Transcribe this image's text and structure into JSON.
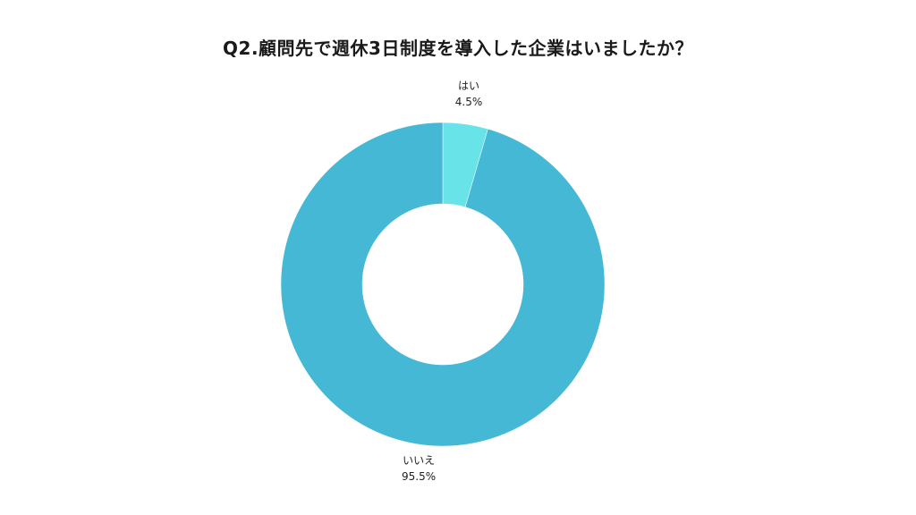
{
  "chart_data": {
    "type": "pie",
    "donut": true,
    "title": "Q2.顧問先で週休3日制度を導入した企業はいましたか？",
    "slices": [
      {
        "label": "はい",
        "value": 4.5,
        "value_label": "4.5%",
        "color": "#68e3e8"
      },
      {
        "label": "いいえ",
        "value": 95.5,
        "value_label": "95.5%",
        "color": "#45b8d5"
      }
    ],
    "start_angle_deg": 0,
    "direction": "clockwise",
    "legend": "none"
  }
}
